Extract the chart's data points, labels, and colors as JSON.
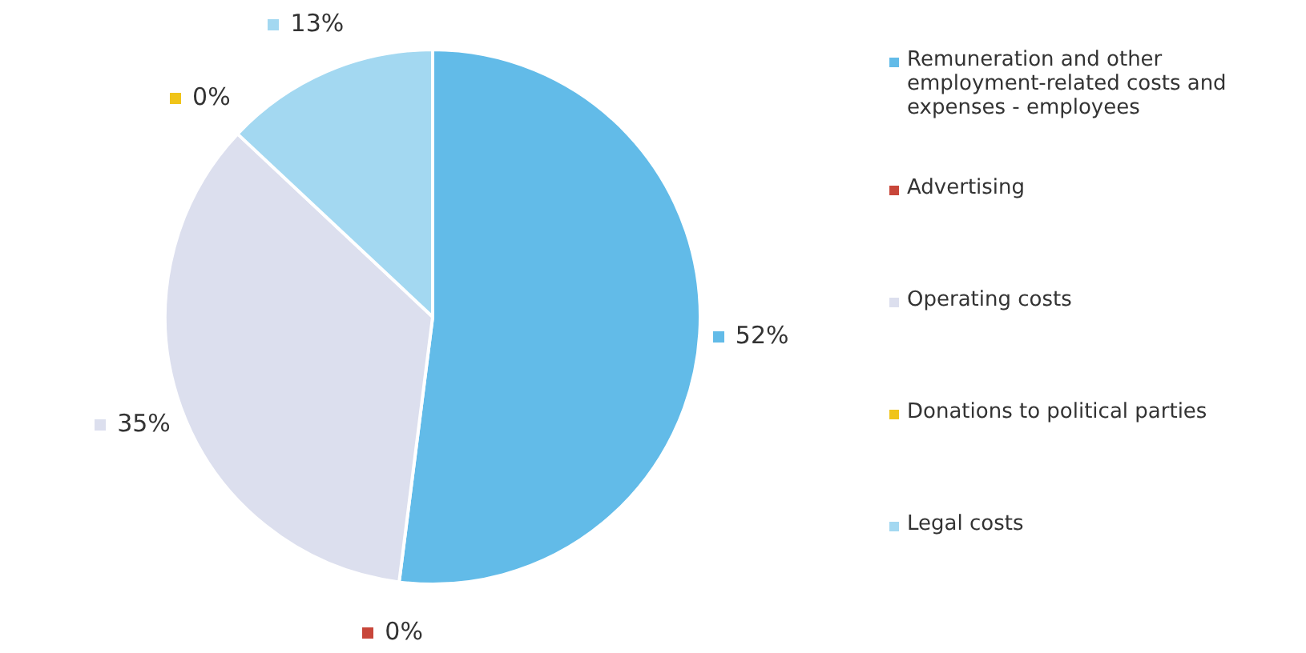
{
  "chart_data": {
    "type": "pie",
    "categories": [
      "Remuneration  and other employment-related costs and expenses - employees",
      "Advertising",
      "Operating costs",
      "Donations to political parties",
      "Legal costs"
    ],
    "values": [
      52,
      0,
      35,
      0,
      13
    ],
    "value_labels": [
      "52%",
      "0%",
      "35%",
      "0%",
      "13%"
    ],
    "colors": [
      "#62bbe8",
      "#c8463a",
      "#dcdfee",
      "#f0c419",
      "#a3d8f1"
    ],
    "legend": "right"
  }
}
